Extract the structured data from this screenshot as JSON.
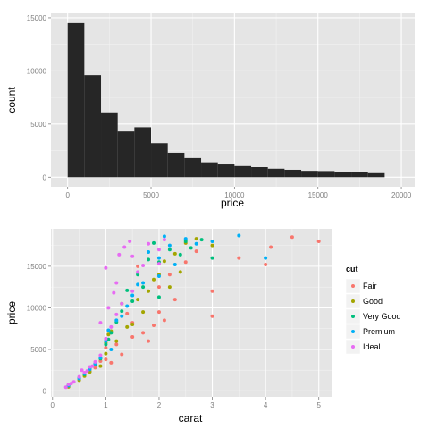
{
  "colors": {
    "panel_bg": "#E5E5E5",
    "grid_major": "#FFFFFF",
    "grid_minor": "#F2F2F2",
    "bar_fill": "#262626",
    "tick_text": "#7F7F7F",
    "axis_title": "#000000",
    "cut": {
      "Fair": "#F8766D",
      "Good": "#A3A500",
      "Very Good": "#00BF7D",
      "Premium": "#00B0F6",
      "Ideal": "#E76BF3"
    }
  },
  "chart_data": [
    {
      "type": "bar",
      "subtype": "histogram",
      "xlabel": "price",
      "ylabel": "count",
      "xlim": [
        -1000,
        20800
      ],
      "ylim": [
        -900,
        15500
      ],
      "x_ticks": [
        0,
        5000,
        10000,
        15000,
        20000
      ],
      "x_tick_labels": [
        "0",
        "5000",
        "10000",
        "15000",
        "20000"
      ],
      "y_ticks": [
        0,
        5000,
        10000,
        15000
      ],
      "y_tick_labels": [
        "0",
        "5000",
        "10000",
        "15000"
      ],
      "grid": true,
      "bin_width": 1000,
      "bins": [
        {
          "x0": 0,
          "x1": 1000,
          "count": 14500
        },
        {
          "x0": 1000,
          "x1": 2000,
          "count": 9600
        },
        {
          "x0": 2000,
          "x1": 3000,
          "count": 6100
        },
        {
          "x0": 3000,
          "x1": 4000,
          "count": 4300
        },
        {
          "x0": 4000,
          "x1": 5000,
          "count": 4700
        },
        {
          "x0": 5000,
          "x1": 6000,
          "count": 3200
        },
        {
          "x0": 6000,
          "x1": 7000,
          "count": 2300
        },
        {
          "x0": 7000,
          "x1": 8000,
          "count": 1800
        },
        {
          "x0": 8000,
          "x1": 9000,
          "count": 1400
        },
        {
          "x0": 9000,
          "x1": 10000,
          "count": 1200
        },
        {
          "x0": 10000,
          "x1": 11000,
          "count": 1050
        },
        {
          "x0": 11000,
          "x1": 12000,
          "count": 950
        },
        {
          "x0": 12000,
          "x1": 13000,
          "count": 800
        },
        {
          "x0": 13000,
          "x1": 14000,
          "count": 700
        },
        {
          "x0": 14000,
          "x1": 15000,
          "count": 600
        },
        {
          "x0": 15000,
          "x1": 16000,
          "count": 580
        },
        {
          "x0": 16000,
          "x1": 17000,
          "count": 520
        },
        {
          "x0": 17000,
          "x1": 18000,
          "count": 450
        },
        {
          "x0": 18000,
          "x1": 19000,
          "count": 380
        }
      ]
    },
    {
      "type": "scatter",
      "xlabel": "carat",
      "ylabel": "price",
      "xlim": [
        -0.03,
        5.24
      ],
      "ylim": [
        -700,
        19500
      ],
      "x_ticks": [
        0,
        1,
        2,
        3,
        4,
        5
      ],
      "x_tick_labels": [
        "0",
        "1",
        "2",
        "3",
        "4",
        "5"
      ],
      "y_ticks": [
        0,
        5000,
        10000,
        15000
      ],
      "y_tick_labels": [
        "0",
        "5000",
        "10000",
        "15000"
      ],
      "grid": true,
      "legend": {
        "title": "cut",
        "position": "right",
        "entries": [
          "Fair",
          "Good",
          "Very Good",
          "Premium",
          "Ideal"
        ]
      },
      "series": [
        {
          "name": "Fair",
          "points": [
            [
              0.3,
              600
            ],
            [
              0.5,
              1400
            ],
            [
              0.7,
              2400
            ],
            [
              0.9,
              3600
            ],
            [
              1.0,
              3800
            ],
            [
              1.0,
              5200
            ],
            [
              1.2,
              5600
            ],
            [
              1.5,
              6500
            ],
            [
              1.5,
              8200
            ],
            [
              1.7,
              7000
            ],
            [
              2.0,
              9500
            ],
            [
              2.0,
              12500
            ],
            [
              2.2,
              14000
            ],
            [
              2.5,
              15500
            ],
            [
              3.0,
              9000
            ],
            [
              3.0,
              12000
            ],
            [
              3.5,
              16000
            ],
            [
              4.0,
              15200
            ],
            [
              4.1,
              17300
            ],
            [
              4.5,
              18500
            ],
            [
              5.0,
              18000
            ],
            [
              1.3,
              4400
            ],
            [
              1.8,
              6000
            ],
            [
              2.3,
              11000
            ],
            [
              0.8,
              2800
            ],
            [
              1.1,
              3400
            ],
            [
              2.7,
              16800
            ],
            [
              1.6,
              15000
            ],
            [
              2.1,
              8500
            ],
            [
              1.4,
              9300
            ],
            [
              0.6,
              1900
            ],
            [
              1.9,
              7900
            ]
          ]
        },
        {
          "name": "Good",
          "points": [
            [
              0.3,
              500
            ],
            [
              0.5,
              1300
            ],
            [
              0.7,
              2300
            ],
            [
              1.0,
              4500
            ],
            [
              1.0,
              5800
            ],
            [
              1.2,
              6000
            ],
            [
              1.5,
              8000
            ],
            [
              1.7,
              9500
            ],
            [
              2.0,
              14000
            ],
            [
              2.3,
              16500
            ],
            [
              2.5,
              17800
            ],
            [
              3.0,
              17500
            ],
            [
              2.2,
              12500
            ],
            [
              1.1,
              7200
            ],
            [
              1.3,
              10500
            ],
            [
              0.9,
              3000
            ],
            [
              2.7,
              18300
            ],
            [
              1.8,
              12000
            ],
            [
              1.6,
              11000
            ],
            [
              2.1,
              15600
            ],
            [
              0.6,
              1800
            ],
            [
              1.4,
              7700
            ],
            [
              1.9,
              13400
            ],
            [
              2.4,
              14300
            ],
            [
              1.05,
              6800
            ]
          ]
        },
        {
          "name": "Very Good",
          "points": [
            [
              0.3,
              700
            ],
            [
              0.5,
              1600
            ],
            [
              0.7,
              2700
            ],
            [
              0.9,
              3900
            ],
            [
              1.0,
              5600
            ],
            [
              1.1,
              7000
            ],
            [
              1.2,
              8300
            ],
            [
              1.5,
              10800
            ],
            [
              1.7,
              12500
            ],
            [
              2.0,
              15500
            ],
            [
              2.2,
              17000
            ],
            [
              2.5,
              18000
            ],
            [
              2.8,
              18200
            ],
            [
              3.0,
              16000
            ],
            [
              1.3,
              9600
            ],
            [
              1.6,
              14000
            ],
            [
              1.8,
              15800
            ],
            [
              2.0,
              11300
            ],
            [
              0.8,
              3200
            ],
            [
              1.05,
              6200
            ],
            [
              2.4,
              16400
            ],
            [
              1.4,
              12100
            ],
            [
              0.6,
              2000
            ],
            [
              1.9,
              17800
            ],
            [
              2.6,
              17200
            ]
          ]
        },
        {
          "name": "Premium",
          "points": [
            [
              0.3,
              650
            ],
            [
              0.5,
              1500
            ],
            [
              0.7,
              2600
            ],
            [
              0.9,
              4000
            ],
            [
              1.0,
              6000
            ],
            [
              1.2,
              8500
            ],
            [
              1.5,
              11500
            ],
            [
              1.7,
              13000
            ],
            [
              2.0,
              16000
            ],
            [
              2.2,
              17500
            ],
            [
              2.5,
              18300
            ],
            [
              3.0,
              18000
            ],
            [
              3.5,
              18700
            ],
            [
              4.0,
              16000
            ],
            [
              1.3,
              9000
            ],
            [
              1.6,
              12800
            ],
            [
              2.0,
              13800
            ],
            [
              2.3,
              15200
            ],
            [
              1.05,
              7300
            ],
            [
              0.8,
              3300
            ],
            [
              1.8,
              16700
            ],
            [
              2.7,
              17700
            ],
            [
              1.4,
              10200
            ],
            [
              2.1,
              18600
            ],
            [
              0.6,
              2100
            ],
            [
              1.1,
              5000
            ]
          ]
        },
        {
          "name": "Ideal",
          "points": [
            [
              0.25,
              450
            ],
            [
              0.3,
              800
            ],
            [
              0.4,
              1100
            ],
            [
              0.5,
              1700
            ],
            [
              0.6,
              2200
            ],
            [
              0.7,
              2900
            ],
            [
              0.8,
              3500
            ],
            [
              0.9,
              4300
            ],
            [
              1.0,
              6300
            ],
            [
              1.1,
              7700
            ],
            [
              1.2,
              9200
            ],
            [
              1.3,
              10500
            ],
            [
              1.5,
              12000
            ],
            [
              1.6,
              14300
            ],
            [
              1.7,
              15100
            ],
            [
              2.0,
              17000
            ],
            [
              2.1,
              18200
            ],
            [
              1.2,
              13000
            ],
            [
              1.0,
              14800
            ],
            [
              1.5,
              16200
            ],
            [
              2.0,
              15300
            ],
            [
              0.75,
              3000
            ],
            [
              1.05,
              10000
            ],
            [
              1.35,
              17300
            ],
            [
              0.9,
              8200
            ],
            [
              1.15,
              11800
            ],
            [
              1.45,
              18000
            ],
            [
              0.55,
              2500
            ],
            [
              1.25,
              16400
            ],
            [
              1.8,
              17700
            ],
            [
              0.35,
              900
            ],
            [
              0.65,
              2400
            ]
          ]
        }
      ]
    }
  ]
}
